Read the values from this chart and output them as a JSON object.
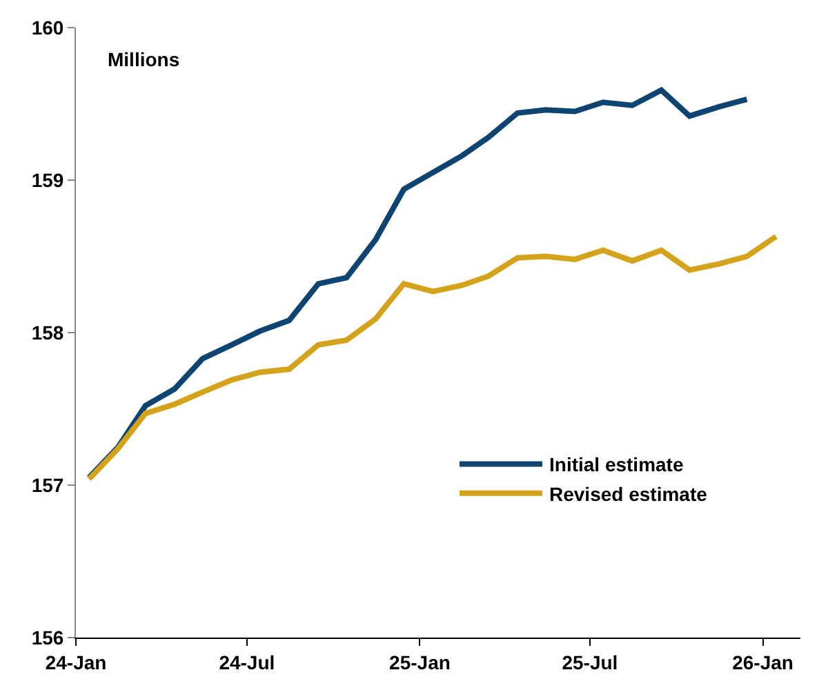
{
  "chart_data": {
    "type": "line",
    "ylabel": "Millions",
    "x": [
      "2024-01-15",
      "2024-02-15",
      "2024-03-15",
      "2024-04-15",
      "2024-05-15",
      "2024-06-15",
      "2024-07-15",
      "2024-08-15",
      "2024-09-15",
      "2024-10-15",
      "2024-11-15",
      "2024-12-15",
      "2025-01-15",
      "2025-02-15",
      "2025-03-15",
      "2025-04-15",
      "2025-05-15",
      "2025-06-15",
      "2025-07-15",
      "2025-08-15",
      "2025-09-15",
      "2025-10-15",
      "2025-11-15",
      "2025-12-15",
      "2026-01-15"
    ],
    "series": [
      {
        "name": "Initial estimate",
        "color": "#0e4471",
        "values": [
          157.05,
          157.25,
          157.52,
          157.63,
          157.83,
          157.92,
          158.01,
          158.08,
          158.32,
          158.36,
          158.61,
          158.94,
          159.05,
          159.16,
          159.28,
          159.44,
          159.46,
          159.45,
          159.51,
          159.49,
          159.59,
          159.42,
          159.48,
          159.53,
          null
        ]
      },
      {
        "name": "Revised estimate",
        "color": "#d5a21b",
        "values": [
          157.04,
          157.24,
          157.47,
          157.53,
          157.61,
          157.69,
          157.74,
          157.76,
          157.92,
          157.95,
          158.09,
          158.32,
          158.27,
          158.31,
          158.37,
          158.49,
          158.5,
          158.48,
          158.54,
          158.47,
          158.54,
          158.41,
          158.45,
          158.5,
          158.63
        ]
      }
    ],
    "xlim": [
      "2024-01-01",
      "2026-02-10"
    ],
    "xticks": [
      {
        "value": "2024-01-01",
        "label": "24-Jan"
      },
      {
        "value": "2024-07-01",
        "label": "24-Jul"
      },
      {
        "value": "2025-01-01",
        "label": "25-Jan"
      },
      {
        "value": "2025-07-01",
        "label": "25-Jul"
      },
      {
        "value": "2026-01-01",
        "label": "26-Jan"
      }
    ],
    "ylim": [
      156,
      160
    ],
    "yticks": [
      156,
      157,
      158,
      159,
      160
    ],
    "legend": "bottom right",
    "marker": "none",
    "line_style": "solid"
  }
}
